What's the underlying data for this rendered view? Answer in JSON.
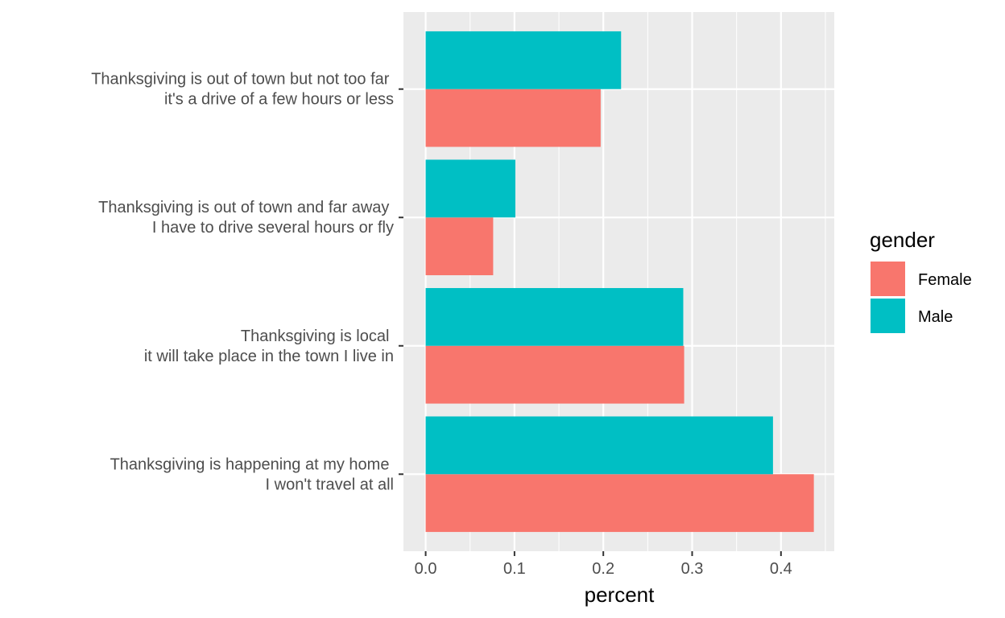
{
  "chart_data": {
    "type": "bar",
    "orientation": "horizontal",
    "categories": [
      [
        "Thanksgiving is happening at my home ",
        "I won't travel at all"
      ],
      [
        "Thanksgiving is local ",
        "it will take place in the town I live in"
      ],
      [
        "Thanksgiving is out of town and far away ",
        "I have to drive several hours or fly"
      ],
      [
        "Thanksgiving is out of town but not too far ",
        "it's a drive of a few hours or less"
      ]
    ],
    "series": [
      {
        "name": "Female",
        "color": "#F8766D",
        "values": [
          0.437,
          0.291,
          0.076,
          0.197
        ]
      },
      {
        "name": "Male",
        "color": "#00BFC4",
        "values": [
          0.391,
          0.29,
          0.101,
          0.22
        ]
      }
    ],
    "xlabel": "percent",
    "ylabel": "",
    "xlim": [
      -0.025,
      0.46
    ],
    "xticks": [
      0.0,
      0.1,
      0.2,
      0.3,
      0.4
    ],
    "xtick_labels": [
      "0.0",
      "0.1",
      "0.2",
      "0.3",
      "0.4"
    ],
    "legend": {
      "title": "gender",
      "position": "right"
    },
    "grid": true,
    "panel_background": "#EBEBEB",
    "gridline_color": "#FFFFFF"
  }
}
